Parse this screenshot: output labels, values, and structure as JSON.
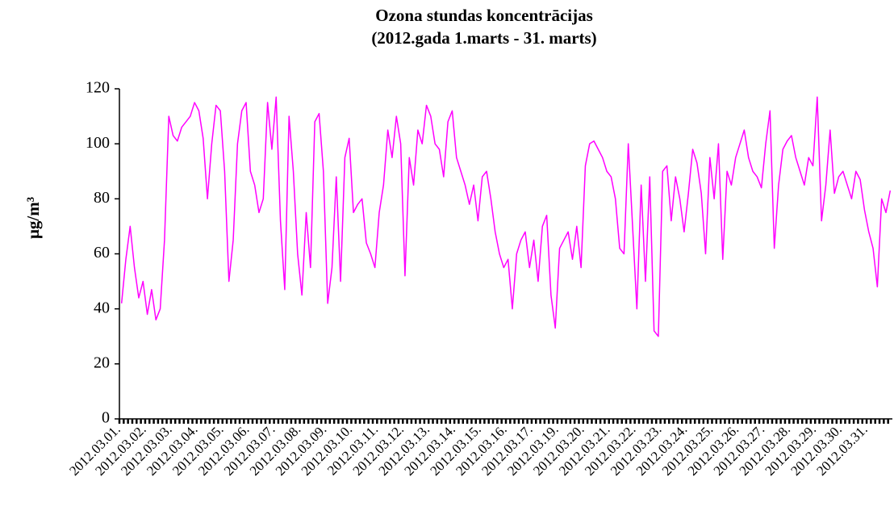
{
  "chart_data": {
    "type": "line",
    "title": "Ozona stundas koncentrācijas",
    "subtitle": "(2012.gada 1.marts - 31. marts)",
    "y_label": "μg/m³",
    "ylim": [
      0,
      120
    ],
    "yticks": [
      0,
      20,
      40,
      60,
      80,
      100,
      120
    ],
    "categories": [
      "2012.03.01.",
      null,
      null,
      null,
      null,
      null,
      "2012.03.02.",
      null,
      null,
      null,
      null,
      null,
      "2012.03.03.",
      null,
      null,
      null,
      null,
      null,
      "2012.03.04.",
      null,
      null,
      null,
      null,
      null,
      "2012.03.05.",
      null,
      null,
      null,
      null,
      null,
      "2012.03.06.",
      null,
      null,
      null,
      null,
      null,
      "2012.03.07.",
      null,
      null,
      null,
      null,
      null,
      "2012.03.08.",
      null,
      null,
      null,
      null,
      null,
      "2012.03.09.",
      null,
      null,
      null,
      null,
      null,
      "2012.03.10.",
      null,
      null,
      null,
      null,
      null,
      "2012.03.11.",
      null,
      null,
      null,
      null,
      null,
      "2012.03.12.",
      null,
      null,
      null,
      null,
      null,
      "2012.03.13.",
      null,
      null,
      null,
      null,
      null,
      "2012.03.14.",
      null,
      null,
      null,
      null,
      null,
      "2012.03.15.",
      null,
      null,
      null,
      null,
      null,
      "2012.03.16.",
      null,
      null,
      null,
      null,
      null,
      "2012.03.17.",
      null,
      null,
      null,
      null,
      null,
      "2012.03.19.",
      null,
      null,
      null,
      null,
      null,
      "2012.03.20.",
      null,
      null,
      null,
      null,
      null,
      "2012.03.21.",
      null,
      null,
      null,
      null,
      null,
      "2012.03.22.",
      null,
      null,
      null,
      null,
      null,
      "2012.03.23.",
      null,
      null,
      null,
      null,
      null,
      "2012.03.24.",
      null,
      null,
      null,
      null,
      null,
      "2012.03.25.",
      null,
      null,
      null,
      null,
      null,
      "2012.03.26.",
      null,
      null,
      null,
      null,
      null,
      "2012.03.27.",
      null,
      null,
      null,
      null,
      null,
      "2012.03.28.",
      null,
      null,
      null,
      null,
      null,
      "2012.03.29.",
      null,
      null,
      null,
      null,
      null,
      "2012.03.30.",
      null,
      null,
      null,
      null,
      null,
      "2012.03.31.",
      null,
      null,
      null,
      null,
      null
    ],
    "color": "#ff00ff",
    "values": [
      42,
      58,
      70,
      55,
      44,
      50,
      38,
      47,
      36,
      40,
      65,
      110,
      103,
      101,
      106,
      108,
      110,
      115,
      112,
      102,
      80,
      100,
      114,
      112,
      90,
      50,
      65,
      100,
      112,
      115,
      90,
      85,
      75,
      80,
      115,
      98,
      117,
      72,
      47,
      110,
      90,
      60,
      45,
      75,
      55,
      108,
      111,
      90,
      42,
      55,
      88,
      50,
      95,
      102,
      75,
      78,
      80,
      64,
      60,
      55,
      75,
      85,
      105,
      95,
      110,
      100,
      52,
      95,
      85,
      105,
      100,
      114,
      110,
      100,
      98,
      88,
      108,
      112,
      95,
      90,
      85,
      78,
      85,
      72,
      88,
      90,
      80,
      68,
      60,
      55,
      58,
      40,
      60,
      65,
      68,
      55,
      65,
      50,
      70,
      74,
      45,
      33,
      62,
      65,
      68,
      58,
      70,
      55,
      92,
      100,
      101,
      98,
      95,
      90,
      88,
      80,
      62,
      60,
      100,
      70,
      40,
      85,
      50,
      88,
      32,
      30,
      90,
      92,
      72,
      88,
      80,
      68,
      82,
      98,
      93,
      82,
      60,
      95,
      80,
      100,
      58,
      90,
      85,
      95,
      100,
      105,
      95,
      90,
      88,
      84,
      100,
      112,
      62,
      85,
      98,
      101,
      103,
      95,
      90,
      85,
      95,
      92,
      117,
      72,
      85,
      105,
      82,
      88,
      90,
      85,
      80,
      90,
      87,
      76,
      68,
      62,
      48,
      80,
      75,
      83
    ]
  }
}
